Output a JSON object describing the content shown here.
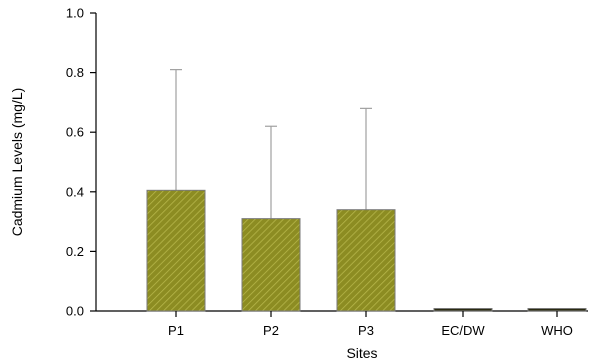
{
  "chart_data": {
    "type": "bar",
    "title": "",
    "xlabel": "Sites",
    "ylabel": "Cadmium Levels (mg/L)",
    "ylim": [
      0,
      1.0
    ],
    "yticks": [
      "0.0",
      "0.2",
      "0.4",
      "0.6",
      "0.8",
      "1.0"
    ],
    "categories": [
      "P1",
      "P2",
      "P3",
      "EC/DW",
      "WHO"
    ],
    "values": [
      0.405,
      0.31,
      0.34,
      0.005,
      0.003
    ],
    "error_upper": [
      0.81,
      0.62,
      0.68,
      0.008,
      0.006
    ],
    "bar_color": "#8c8c22",
    "hatch_color": "#b6b64a",
    "error_color": "#a0a0a0",
    "grid": false,
    "legend": false
  }
}
